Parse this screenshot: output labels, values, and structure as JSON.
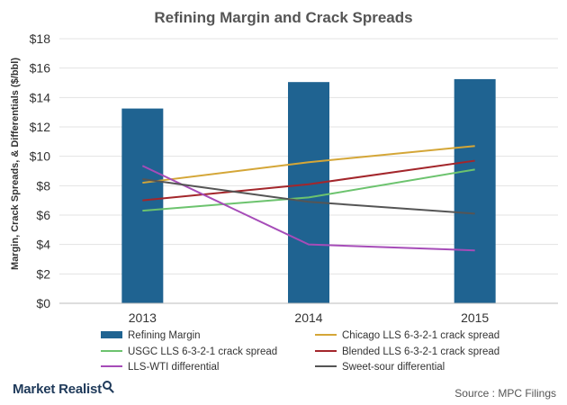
{
  "chart_data": {
    "type": "bar+line",
    "title": "Refining Margin and Crack Spreads",
    "ylabel": "Margin, Crack Spreads, & Differentials ($/bbl)",
    "xlabel": "",
    "categories": [
      "2013",
      "2014",
      "2015"
    ],
    "ylim": [
      0,
      18
    ],
    "yticks": [
      "$0",
      "$2",
      "$4",
      "$6",
      "$8",
      "$10",
      "$12",
      "$14",
      "$16",
      "$18"
    ],
    "grid": true,
    "legend_position": "bottom",
    "bar_series": {
      "name": "Refining Margin",
      "color": "#1f6391",
      "values": [
        13.25,
        15.05,
        15.25
      ]
    },
    "series": [
      {
        "name": "Chicago LLS 6-3-2-1 crack spread",
        "color": "#d4a637",
        "values": [
          8.2,
          9.6,
          10.7
        ]
      },
      {
        "name": "USGC LLS 6-3-2-1 crack spread",
        "color": "#6cc36e",
        "values": [
          6.3,
          7.2,
          9.1
        ]
      },
      {
        "name": "Blended LLS 6-3-2-1 crack spread",
        "color": "#a3262b",
        "values": [
          7.0,
          8.1,
          9.7
        ]
      },
      {
        "name": "LLS-WTI differential",
        "color": "#a64cb8",
        "values": [
          9.35,
          4.0,
          3.6
        ]
      },
      {
        "name": "Sweet-sour differential",
        "color": "#555555",
        "values": [
          8.45,
          6.9,
          6.1
        ]
      }
    ]
  },
  "footer": {
    "brand": "Market Realist",
    "source": "Source : MPC Filings"
  }
}
